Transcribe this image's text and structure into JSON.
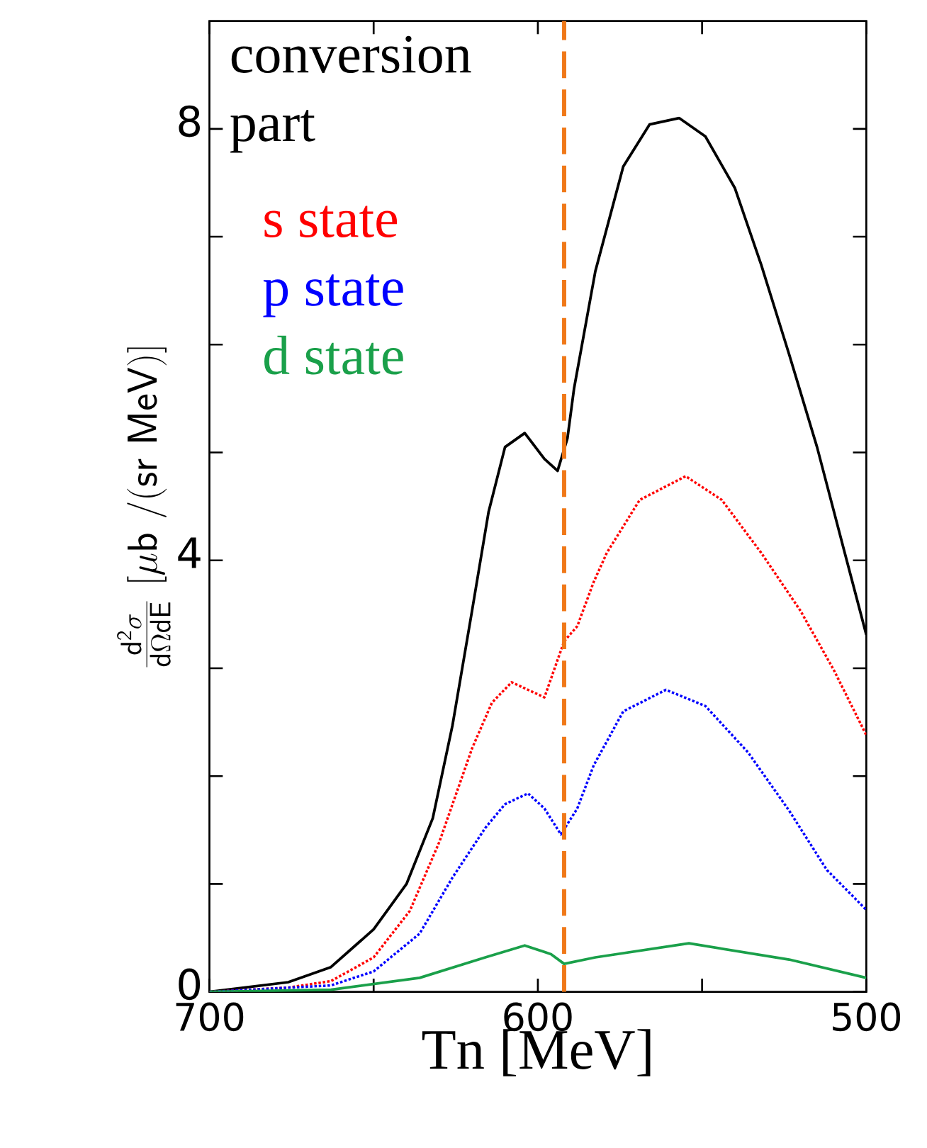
{
  "chart_data": {
    "type": "line",
    "xlabel": "Tn [MeV]",
    "ylabel": "\\frac{\\mathsf{d^{2}}\\sigma}{\\mathsf{d}\\Omega\\mathsf{dE}}\\ \\mathsf{[\\mu b\\ /(sr\\ MeV)]}",
    "annotations": [
      "conversion part"
    ],
    "xlim": [
      700,
      500
    ],
    "xticks": [
      700,
      {
        "value": 650,
        "label": null
      },
      600,
      {
        "value": 550,
        "label": null
      },
      500
    ],
    "ylim": [
      0,
      9
    ],
    "yticks": [
      0,
      {
        "value": 1,
        "label": null
      },
      {
        "value": 2,
        "label": null
      },
      {
        "value": 3,
        "label": null
      },
      4,
      {
        "value": 5,
        "label": null
      },
      {
        "value": 6,
        "label": null
      },
      {
        "value": 7,
        "label": null
      },
      8
    ],
    "legend": "top left",
    "ref_lines": [
      {
        "axis": "x",
        "value": 592,
        "color": "#f07818",
        "line_style": "dashed"
      }
    ],
    "series": [
      {
        "color": "#000000",
        "line_style": "solid",
        "x": [
          700,
          676,
          663,
          650,
          640,
          632,
          626,
          620,
          615,
          610,
          604,
          598,
          594,
          591,
          589,
          582.5,
          574,
          566,
          557,
          549,
          540,
          532,
          523.5,
          515,
          507,
          500
        ],
        "values": [
          0,
          0.09,
          0.23,
          0.58,
          1.0,
          1.61,
          2.47,
          3.54,
          4.45,
          5.05,
          5.18,
          4.94,
          4.83,
          5.13,
          5.59,
          6.68,
          7.65,
          8.04,
          8.1,
          7.93,
          7.45,
          6.74,
          5.91,
          5.05,
          4.12,
          3.31
        ]
      },
      {
        "name": "s state",
        "color": "#ff0000",
        "line_style": "dotted",
        "x": [
          700,
          676,
          663,
          650,
          639,
          630,
          620,
          614,
          608,
          598,
          592,
          588,
          583,
          579,
          569,
          555,
          544,
          532,
          520,
          510,
          500
        ],
        "values": [
          0,
          0.04,
          0.1,
          0.32,
          0.75,
          1.39,
          2.26,
          2.68,
          2.87,
          2.73,
          3.25,
          3.39,
          3.8,
          4.07,
          4.56,
          4.78,
          4.56,
          4.07,
          3.53,
          2.99,
          2.38
        ]
      },
      {
        "name": "p state",
        "color": "#0000ff",
        "line_style": "dotted",
        "x": [
          700,
          663,
          650,
          636,
          626,
          616,
          610,
          603,
          598,
          593,
          588,
          583,
          574,
          561,
          549,
          536,
          523.5,
          512,
          500
        ],
        "values": [
          0,
          0.06,
          0.19,
          0.54,
          1.06,
          1.52,
          1.74,
          1.84,
          1.7,
          1.46,
          1.7,
          2.1,
          2.6,
          2.8,
          2.65,
          2.22,
          1.68,
          1.13,
          0.76
        ]
      },
      {
        "name": "d state",
        "color": "#1aa04a",
        "line_style": "solid",
        "x": [
          700,
          663,
          636,
          616,
          604,
          596,
          592,
          582.5,
          554,
          523.5,
          500
        ],
        "values": [
          0,
          0.02,
          0.13,
          0.32,
          0.43,
          0.35,
          0.26,
          0.32,
          0.45,
          0.3,
          0.13
        ]
      }
    ]
  }
}
